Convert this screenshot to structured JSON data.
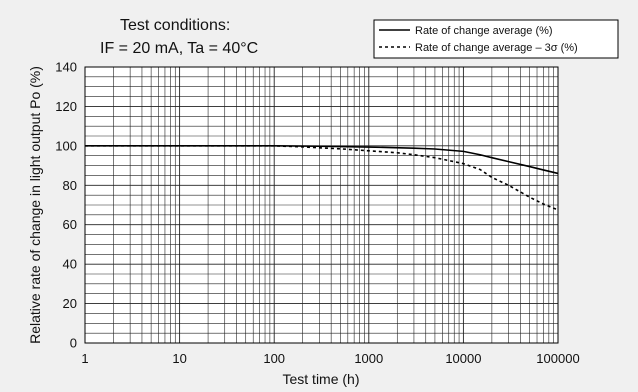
{
  "chart_data": {
    "type": "line",
    "xscale": "log",
    "xlim": [
      1,
      100000
    ],
    "ylim": [
      0,
      140
    ],
    "grid": true,
    "legend_position": "top-right",
    "xlabel": "Test time (h)",
    "ylabel": "Relative rate of change in light output Po (%)",
    "x_ticks": [
      "1",
      "10",
      "100",
      "1000",
      "10000",
      "100000"
    ],
    "y_ticks": [
      "0",
      "20",
      "40",
      "60",
      "80",
      "100",
      "120",
      "140"
    ],
    "annotations": [
      "Test conditions:",
      "IF = 20 mA, Ta = 40°C"
    ],
    "series": [
      {
        "name": "Rate of change average (%)",
        "style": "solid",
        "color": "#000000",
        "x": [
          1,
          10,
          100,
          300,
          1000,
          3000,
          5000,
          10000,
          15000,
          20000,
          30000,
          50000,
          70000,
          100000
        ],
        "y": [
          100,
          100,
          100,
          99.8,
          99.4,
          98.8,
          98.4,
          97.2,
          95.5,
          94,
          92,
          89.5,
          87.8,
          86
        ]
      },
      {
        "name": "Rate of change average – 3σ (%)",
        "style": "dashed",
        "color": "#000000",
        "x": [
          1,
          10,
          100,
          200,
          300,
          500,
          1000,
          2000,
          3000,
          5000,
          10000,
          15000,
          20000,
          30000,
          50000,
          70000,
          100000
        ],
        "y": [
          100,
          100,
          100,
          99.5,
          99,
          98.5,
          97.5,
          96.5,
          95.5,
          94,
          91,
          88,
          84,
          80,
          74,
          70.5,
          67.5
        ]
      }
    ]
  }
}
